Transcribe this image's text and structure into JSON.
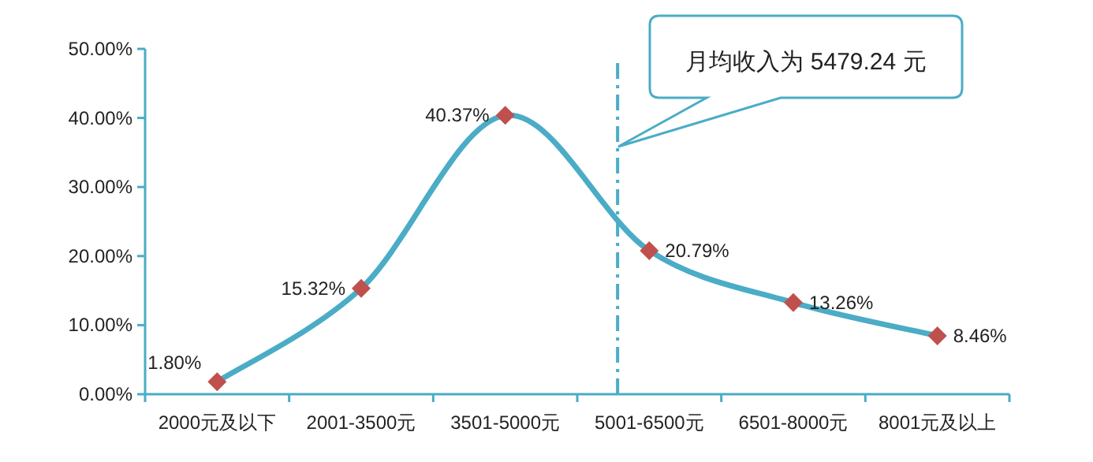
{
  "chart_data": {
    "type": "line",
    "categories": [
      "2000元及以下",
      "2001-3500元",
      "3501-5000元",
      "5001-6500元",
      "6501-8000元",
      "8001元及以上"
    ],
    "series": [
      {
        "color": "#4bacc6",
        "colors": [
          "#c0504d",
          "#c0504d",
          "#c0504d",
          "#c0504d",
          "#c0504d",
          "#c0504d"
        ],
        "values": [
          1.8,
          15.32,
          40.37,
          20.79,
          13.26,
          8.46
        ],
        "value_labels": [
          "1.80%",
          "15.32%",
          "40.37%",
          "20.79%",
          "13.26%",
          "8.46%"
        ]
      }
    ],
    "marker": "diamond",
    "ylim": [
      0,
      50
    ],
    "yticks": [
      {
        "value": 0,
        "label": "0.00%"
      },
      {
        "value": 10,
        "label": "10.00%"
      },
      {
        "value": 20,
        "label": "20.00%"
      },
      {
        "value": 30,
        "label": "30.00%"
      },
      {
        "value": 40,
        "label": "40.00%"
      },
      {
        "value": 50,
        "label": "50.00%"
      }
    ],
    "ref_lines": [
      {
        "axis": "x",
        "value": "5001-6500元",
        "line_style": "dashdot",
        "color": "#4bacc6"
      }
    ],
    "annotations": [
      "月均收入为 5479.24 元"
    ],
    "grid": false
  }
}
